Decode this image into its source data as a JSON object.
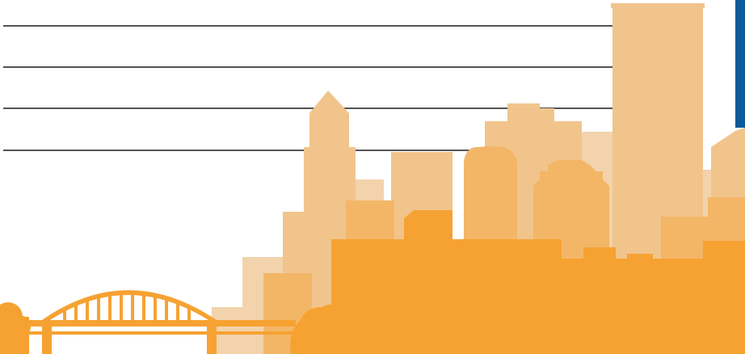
{
  "illustration": {
    "subject": "city-skyline-with-arch-bridge",
    "colors": {
      "background": "#ffffff",
      "line": "#1a1a1a",
      "tower_pale": "#f2d3ac",
      "tower_light": "#f1c48c",
      "tower_mid": "#f3b667",
      "tower_front": "#f6a232",
      "bridge": "#f6a232",
      "accent_edge": "#0f5a9a"
    }
  }
}
